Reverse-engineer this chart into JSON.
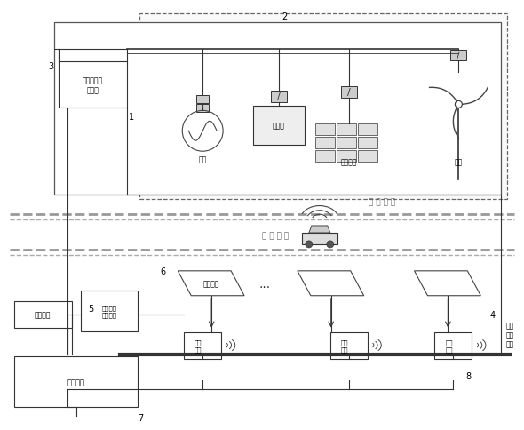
{
  "title": "",
  "bg_color": "#ffffff",
  "fig_width": 5.9,
  "fig_height": 4.85,
  "labels": {
    "inverter": "多通道高频\n逆变器",
    "grid": "电网",
    "battery": "蓄电池",
    "solar": "光伏阵列",
    "wind": "风机",
    "energy_source": "能 源 系 统",
    "road": "充 电 道 路",
    "transmit_coil": "发射线圈",
    "match_circuit": "匹配电路",
    "shared_cap": "共用可调\n谐振电容",
    "control": "控制系统",
    "rfid": "射频\n识别",
    "hf_ac_bus": "高频\n交流\n母线",
    "label1": "1",
    "label2": "2",
    "label3": "3",
    "label4": "4",
    "label5": "5",
    "label6": "6",
    "label7": "7",
    "label8": "8"
  },
  "colors": {
    "box": "#333333",
    "line": "#333333",
    "dashed_box": "#666666",
    "fill_light": "#f0f0f0",
    "fill_white": "#ffffff",
    "separator": "#888888"
  }
}
